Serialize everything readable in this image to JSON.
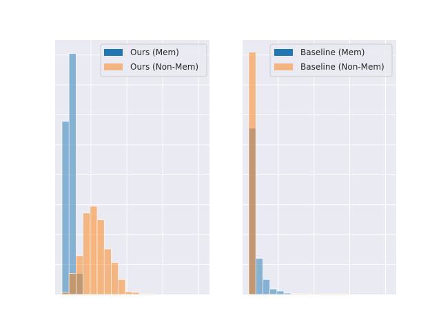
{
  "colors": {
    "mem": "#1f77b4",
    "nonmem": "#ff7f0e",
    "axes_bg": "#eaeaf2",
    "grid": "#ffffff",
    "legend_bg": "#eaeaf2",
    "legend_edge": "#cccccc"
  },
  "chart_data": [
    {
      "type": "bar",
      "style": "overlaid histogram",
      "title": "",
      "xlabel": "",
      "ylabel": "",
      "tick_labels_shown": false,
      "grid": true,
      "legend_position": "top-right",
      "bins": 20,
      "xlim": [
        0,
        20.5
      ],
      "ylim": [
        0,
        375
      ],
      "series": [
        {
          "name": "Ours (Mem)",
          "color_key": "mem",
          "values": [
            255,
            355,
            31,
            0,
            0,
            0,
            0,
            0,
            0,
            0,
            0,
            0,
            0,
            0,
            0,
            0,
            0,
            0,
            0,
            0
          ]
        },
        {
          "name": "Ours (Non-Mem)",
          "color_key": "nonmem",
          "values": [
            3,
            31,
            57,
            120,
            130,
            110,
            67,
            47,
            22,
            4,
            3,
            1,
            1,
            0,
            0,
            0,
            0,
            0,
            0,
            0
          ]
        }
      ]
    },
    {
      "type": "bar",
      "style": "overlaid histogram",
      "title": "",
      "xlabel": "",
      "ylabel": "",
      "tick_labels_shown": false,
      "grid": true,
      "legend_position": "top-right",
      "bins": 20,
      "xlim": [
        0,
        20.5
      ],
      "ylim": [
        0,
        375
      ],
      "series": [
        {
          "name": "Baseline (Mem)",
          "color_key": "mem",
          "values": [
            245,
            53,
            22,
            8,
            5,
            2,
            1,
            1,
            0,
            0,
            0,
            0,
            0,
            0,
            0,
            0,
            0,
            0,
            0,
            0
          ]
        },
        {
          "name": "Baseline (Non-Mem)",
          "color_key": "nonmem",
          "values": [
            357,
            0,
            0,
            0,
            0,
            0,
            1,
            1,
            1,
            0,
            1,
            1,
            1,
            1,
            0,
            0,
            0,
            0,
            0,
            0
          ]
        }
      ]
    }
  ]
}
